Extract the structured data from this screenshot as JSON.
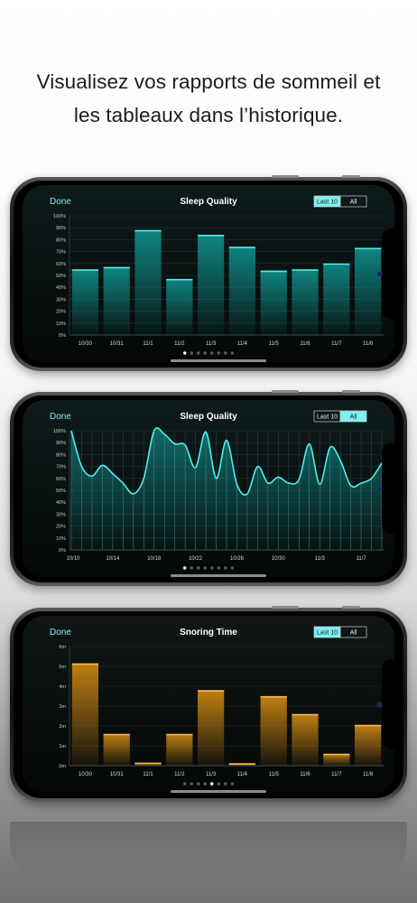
{
  "headline": {
    "line1": "Visualisez vos rapports de sommeil et",
    "line2": "les tableaux dans l’historique."
  },
  "colors": {
    "accent": "#7ff0f0",
    "teal_bar": "#0f8a86",
    "teal_line": "#4ff0ec",
    "amber_bar": "#c98412",
    "amber_line": "#ffb84a"
  },
  "phones": [
    {
      "done_label": "Done",
      "title": "Sleep Quality",
      "segments": [
        "Last 10",
        "All"
      ],
      "selected_segment": 0,
      "page_dots": 8,
      "active_dot": 0,
      "chart_data": {
        "type": "bar",
        "theme": "teal",
        "categories": [
          "10/30",
          "10/31",
          "11/1",
          "11/2",
          "11/3",
          "11/4",
          "11/5",
          "11/6",
          "11/7",
          "11/8"
        ],
        "values": [
          55,
          57,
          88,
          47,
          84,
          74,
          54,
          55,
          60,
          73
        ],
        "yticks": [
          "0%",
          "10%",
          "20%",
          "30%",
          "40%",
          "50%",
          "60%",
          "70%",
          "80%",
          "90%",
          "100%"
        ],
        "ylim": [
          0,
          100
        ],
        "grid": true
      }
    },
    {
      "done_label": "Done",
      "title": "Sleep Quality",
      "segments": [
        "Last 10",
        "All"
      ],
      "selected_segment": 1,
      "page_dots": 8,
      "active_dot": 0,
      "chart_data": {
        "type": "area",
        "theme": "teal",
        "x_start_label_index": 0,
        "x_labels": [
          "10/10",
          "10/14",
          "10/18",
          "10/22",
          "10/26",
          "10/30",
          "11/3",
          "11/7"
        ],
        "x_label_every": 4,
        "values": [
          100,
          70,
          62,
          71,
          64,
          56,
          47,
          60,
          100,
          97,
          89,
          88,
          69,
          99,
          60,
          92,
          55,
          47,
          70,
          56,
          61,
          56,
          59,
          89,
          55,
          86,
          75,
          54,
          56,
          60,
          73
        ],
        "yticks": [
          "0%",
          "10%",
          "20%",
          "30%",
          "40%",
          "50%",
          "60%",
          "70%",
          "80%",
          "90%",
          "100%"
        ],
        "ylim": [
          0,
          100
        ],
        "grid": true
      }
    },
    {
      "done_label": "Done",
      "title": "Snoring Time",
      "segments": [
        "Last 10",
        "All"
      ],
      "selected_segment": 0,
      "page_dots": 8,
      "active_dot": 4,
      "chart_data": {
        "type": "bar",
        "theme": "amber",
        "categories": [
          "10/30",
          "10/31",
          "11/1",
          "11/2",
          "11/3",
          "11/4",
          "11/5",
          "11/6",
          "11/7",
          "11/8"
        ],
        "values": [
          5.15,
          1.6,
          0.15,
          1.6,
          3.8,
          0.12,
          3.5,
          2.6,
          0.6,
          2.05
        ],
        "yticks": [
          "0m",
          "1m",
          "2m",
          "3m",
          "4m",
          "5m",
          "6m"
        ],
        "ylim": [
          0,
          6
        ],
        "grid": true
      }
    }
  ]
}
